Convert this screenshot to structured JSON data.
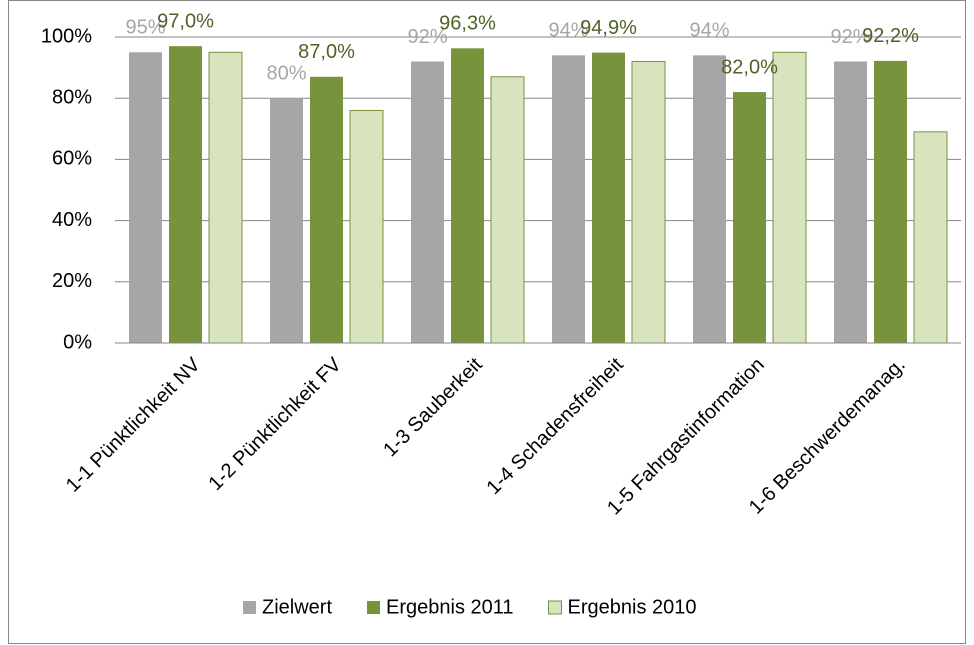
{
  "chart_data": {
    "type": "bar",
    "categories": [
      "1-1 Pünktlichkeit NV",
      "1-2 Pünktlichkeit FV",
      "1-3 Sauberkeit",
      "1-4 Schadensfreiheit",
      "1-5 Fahrgastinformation",
      "1-6 Beschwerdemanag."
    ],
    "series": [
      {
        "name": "Zielwert",
        "color": "#a6a6a6",
        "label_color": "#a6a6a6",
        "values": [
          95,
          80,
          92,
          94,
          94,
          92
        ],
        "value_labels": [
          "95%",
          "80%",
          "92%",
          "94%",
          "94%",
          "92%"
        ]
      },
      {
        "name": "Ergebnis 2011",
        "color": "#77933c",
        "label_color": "#4f6228",
        "values": [
          97.0,
          87.0,
          96.3,
          94.9,
          82.0,
          92.2
        ],
        "value_labels": [
          "97,0%",
          "87,0%",
          "96,3%",
          "94,9%",
          "82,0%",
          "92,2%"
        ]
      },
      {
        "name": "Ergebnis 2010",
        "color": "#d7e4bd",
        "values": [
          95,
          76,
          87,
          92,
          95,
          69
        ]
      }
    ],
    "ylim": [
      0,
      100
    ],
    "yticks": [
      {
        "value": 0,
        "label": "0%"
      },
      {
        "value": 20,
        "label": "20%"
      },
      {
        "value": 40,
        "label": "40%"
      },
      {
        "value": 60,
        "label": "60%"
      },
      {
        "value": 80,
        "label": "80%"
      },
      {
        "value": 100,
        "label": "100%"
      }
    ],
    "grid": true,
    "legend": "bottom"
  }
}
